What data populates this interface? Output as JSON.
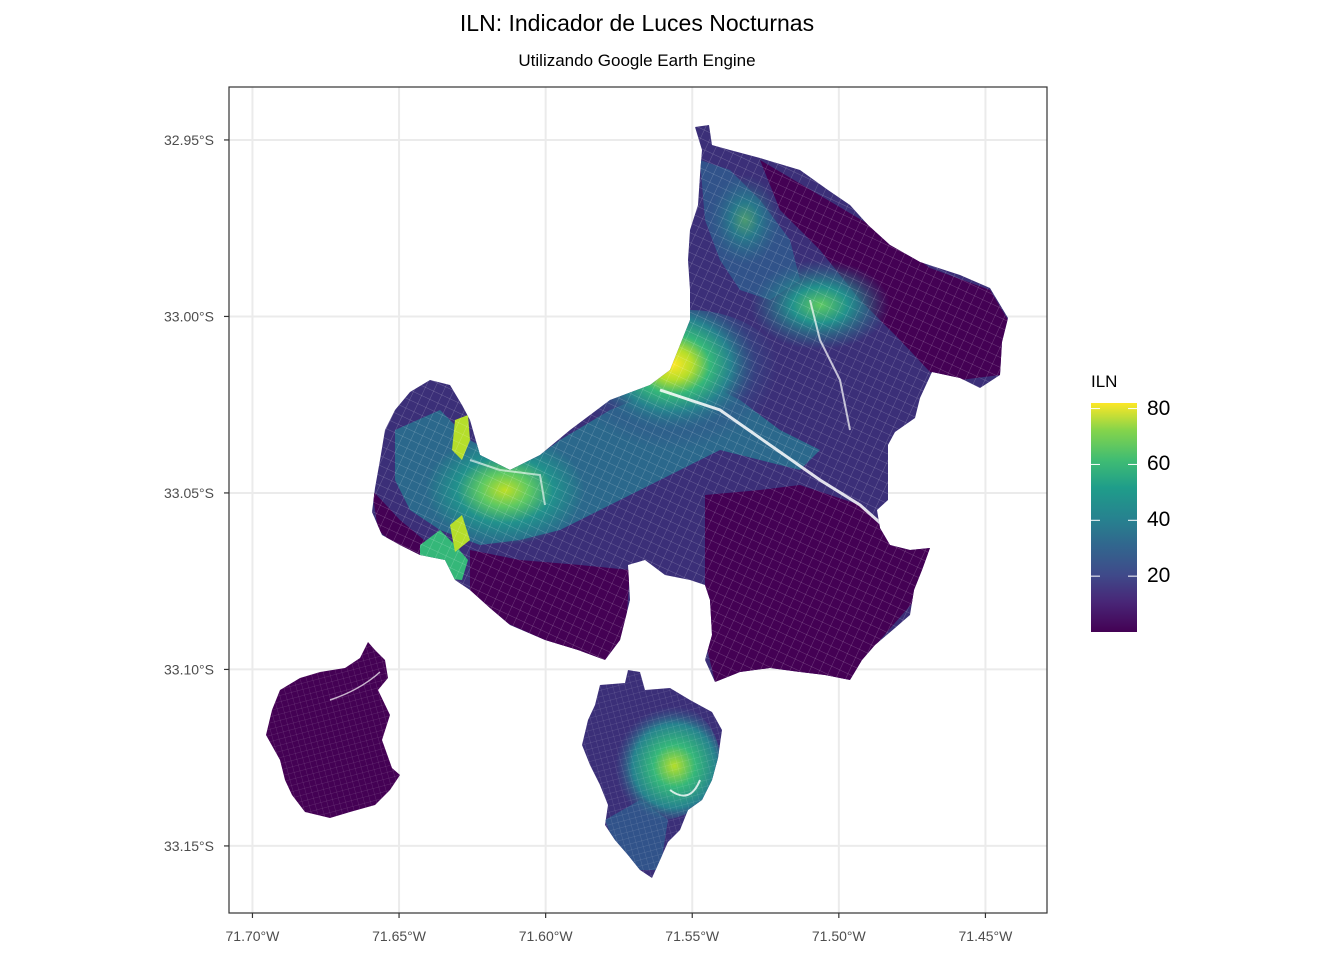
{
  "title": "ILN: Indicador de Luces Nocturnas",
  "subtitle": "Utilizando Google Earth Engine",
  "chart_data": {
    "type": "choropleth map",
    "variable": "ILN",
    "x_axis_ticks": [
      "71.70°W",
      "71.65°W",
      "71.60°W",
      "71.55°W",
      "71.50°W",
      "71.45°W"
    ],
    "x_axis_values": [
      -71.7,
      -71.65,
      -71.6,
      -71.55,
      -71.5,
      -71.45
    ],
    "y_axis_ticks": [
      "32.95°S",
      "33.00°S",
      "33.05°S",
      "33.10°S",
      "33.15°S"
    ],
    "y_axis_values": [
      -32.95,
      -33.0,
      -33.05,
      -33.1,
      -33.15
    ],
    "xlim": [
      -71.708,
      -71.429
    ],
    "ylim": [
      -33.169,
      -32.935
    ],
    "grid": true,
    "legend": {
      "title": "ILN",
      "ticks": [
        80,
        60,
        40,
        20
      ],
      "range": [
        0,
        82
      ],
      "colormap": "viridis",
      "placement": "right"
    },
    "colors": {
      "low": "#440154",
      "mid_low": "#3b528b",
      "mid": "#21908d",
      "mid_high": "#5dc963",
      "high": "#fde725"
    }
  }
}
